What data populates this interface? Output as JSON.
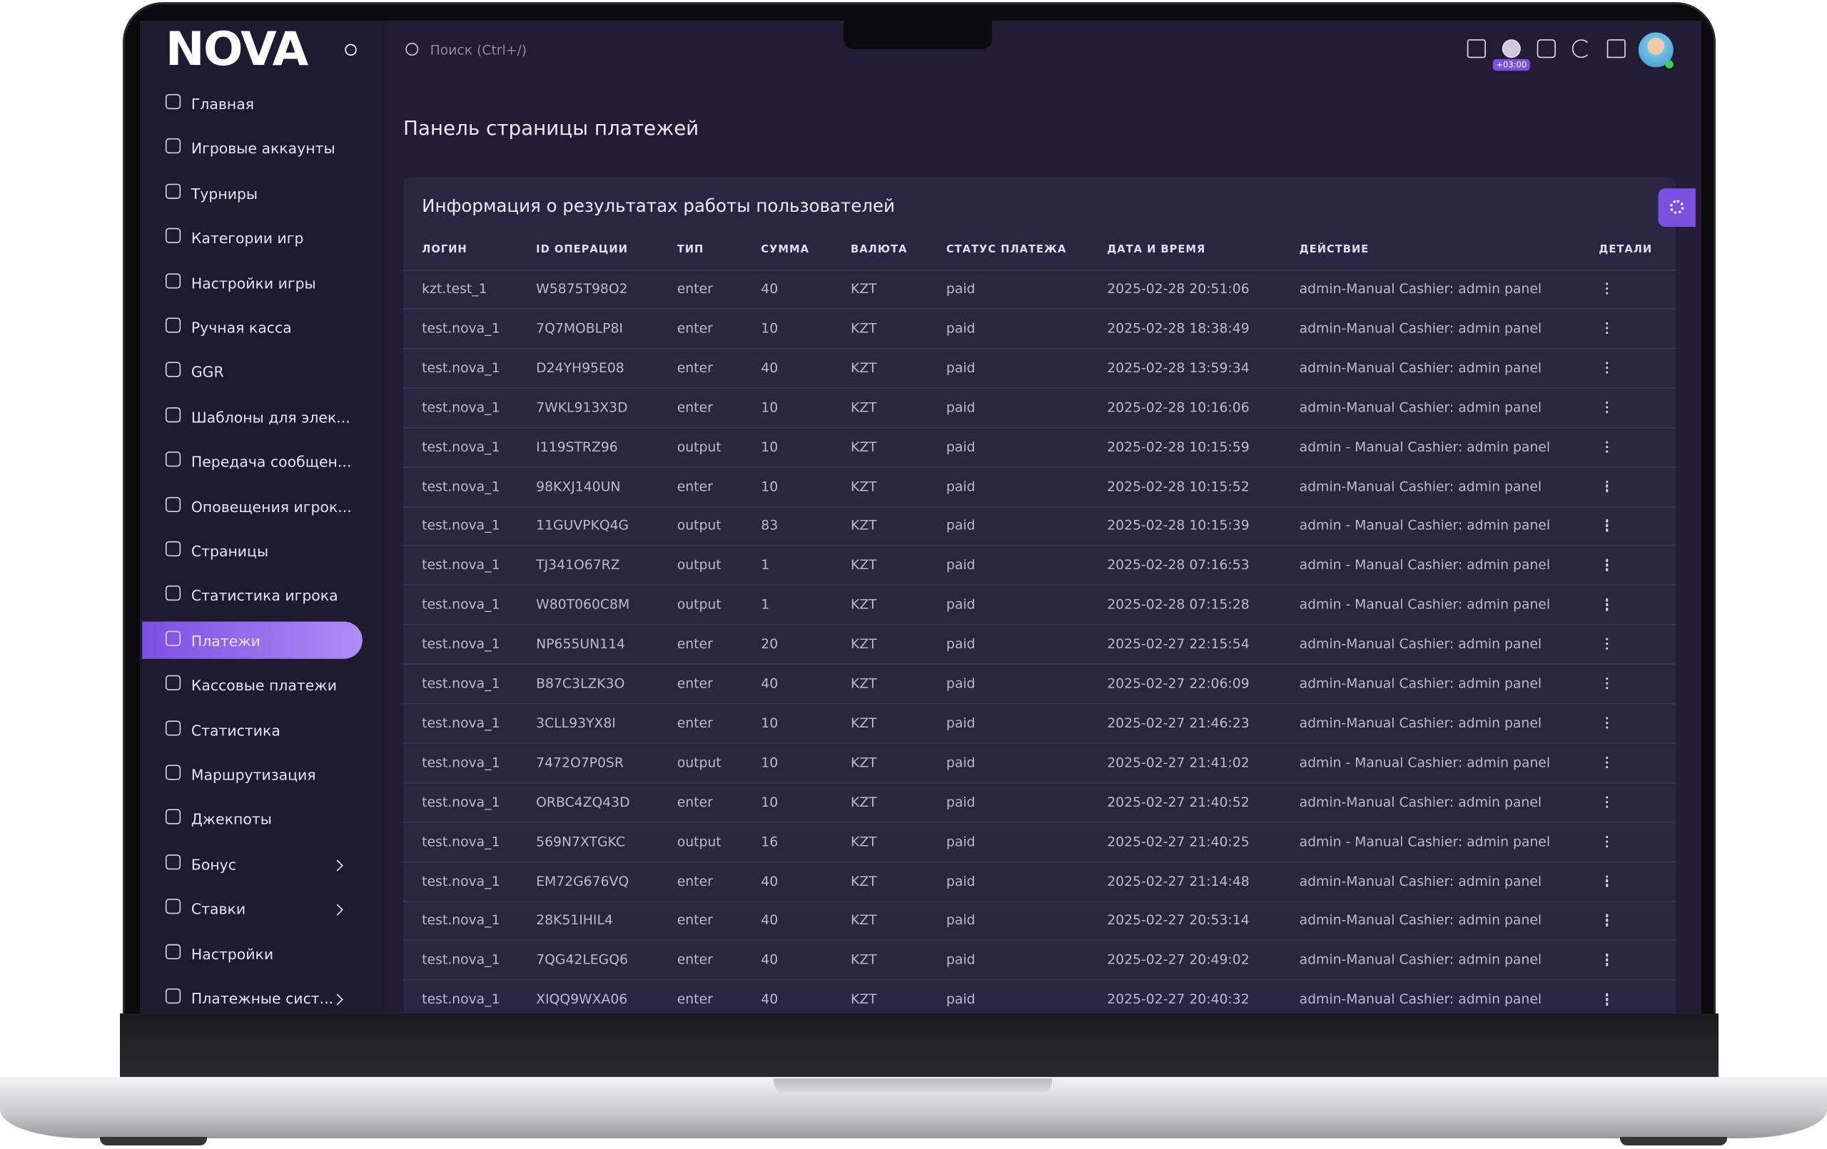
{
  "header": {
    "logo": "NOVA",
    "search_placeholder": "Поиск (Ctrl+/)",
    "timezone": "+03:00"
  },
  "sidebar": {
    "items": [
      "Главная",
      "Игровые аккаунты",
      "Турниры",
      "Категории игр",
      "Настройки игры",
      "Ручная касса",
      "GGR",
      "Шаблоны для элек...",
      "Передача сообщен...",
      "Оповещения игрок...",
      "Страницы",
      "Статистика игрока",
      "Платежи",
      "Кассовые платежи",
      "Статистика",
      "Маршрутизация",
      "Джекпоты",
      "Бонус",
      "Ставки",
      "Настройки",
      "Платежные сист..."
    ]
  },
  "page": {
    "title": "Панель страницы платежей"
  },
  "table": {
    "title": "Информация о результатах работы пользователей",
    "columns": [
      "Логин",
      "ID операции",
      "Тип",
      "Сумма",
      "Валюта",
      "Статус платежа",
      "Дата и время",
      "Действие",
      "Детали"
    ],
    "rows": [
      [
        "kzt.test_1",
        "W5875T98O2",
        "enter",
        40,
        "KZT",
        "paid",
        "2025-02-28 20:51:06",
        "admin-Manual Cashier: admin panel"
      ],
      [
        "test.nova_1",
        "7Q7MOBLP8I",
        "enter",
        10,
        "KZT",
        "paid",
        "2025-02-28 18:38:49",
        "admin-Manual Cashier: admin panel"
      ],
      [
        "test.nova_1",
        "D24YH95E08",
        "enter",
        40,
        "KZT",
        "paid",
        "2025-02-28 13:59:34",
        "admin-Manual Cashier: admin panel"
      ],
      [
        "test.nova_1",
        "7WKL913X3D",
        "enter",
        10,
        "KZT",
        "paid",
        "2025-02-28 10:16:06",
        "admin-Manual Cashier: admin panel"
      ],
      [
        "test.nova_1",
        "I119STRZ96",
        "output",
        10,
        "KZT",
        "paid",
        "2025-02-28 10:15:59",
        "admin - Manual Cashier: admin panel"
      ],
      [
        "test.nova_1",
        "98KXJ140UN",
        "enter",
        10,
        "KZT",
        "paid",
        "2025-02-28 10:15:52",
        "admin-Manual Cashier: admin panel"
      ],
      [
        "test.nova_1",
        "11GUVPKQ4G",
        "output",
        83,
        "KZT",
        "paid",
        "2025-02-28 10:15:39",
        "admin - Manual Cashier: admin panel"
      ],
      [
        "test.nova_1",
        "TJ341O67RZ",
        "output",
        1,
        "KZT",
        "paid",
        "2025-02-28 07:16:53",
        "admin - Manual Cashier: admin panel"
      ],
      [
        "test.nova_1",
        "W80T060C8M",
        "output",
        1,
        "KZT",
        "paid",
        "2025-02-28 07:15:28",
        "admin - Manual Cashier: admin panel"
      ],
      [
        "test.nova_1",
        "NP655UN114",
        "enter",
        20,
        "KZT",
        "paid",
        "2025-02-27 22:15:54",
        "admin-Manual Cashier: admin panel"
      ],
      [
        "test.nova_1",
        "B87C3LZK3O",
        "enter",
        40,
        "KZT",
        "paid",
        "2025-02-27 22:06:09",
        "admin-Manual Cashier: admin panel"
      ],
      [
        "test.nova_1",
        "3CLL93YX8I",
        "enter",
        10,
        "KZT",
        "paid",
        "2025-02-27 21:46:23",
        "admin-Manual Cashier: admin panel"
      ],
      [
        "test.nova_1",
        "7472O7P0SR",
        "output",
        10,
        "KZT",
        "paid",
        "2025-02-27 21:41:02",
        "admin - Manual Cashier: admin panel"
      ],
      [
        "test.nova_1",
        "ORBC4ZQ43D",
        "enter",
        10,
        "KZT",
        "paid",
        "2025-02-27 21:40:52",
        "admin-Manual Cashier: admin panel"
      ],
      [
        "test.nova_1",
        "569N7XTGKC",
        "output",
        16,
        "KZT",
        "paid",
        "2025-02-27 21:40:25",
        "admin - Manual Cashier: admin panel"
      ],
      [
        "test.nova_1",
        "EM72G676VQ",
        "enter",
        40,
        "KZT",
        "paid",
        "2025-02-27 21:14:48",
        "admin-Manual Cashier: admin panel"
      ],
      [
        "test.nova_1",
        "28K51IHIL4",
        "enter",
        40,
        "KZT",
        "paid",
        "2025-02-27 20:53:14",
        "admin-Manual Cashier: admin panel"
      ],
      [
        "test.nova_1",
        "7QG42LEGQ6",
        "enter",
        40,
        "KZT",
        "paid",
        "2025-02-27 20:49:02",
        "admin-Manual Cashier: admin panel"
      ],
      [
        "test.nova_1",
        "XIQQ9WXA06",
        "enter",
        40,
        "KZT",
        "paid",
        "2025-02-27 20:40:32",
        "admin-Manual Cashier: admin panel"
      ]
    ]
  }
}
